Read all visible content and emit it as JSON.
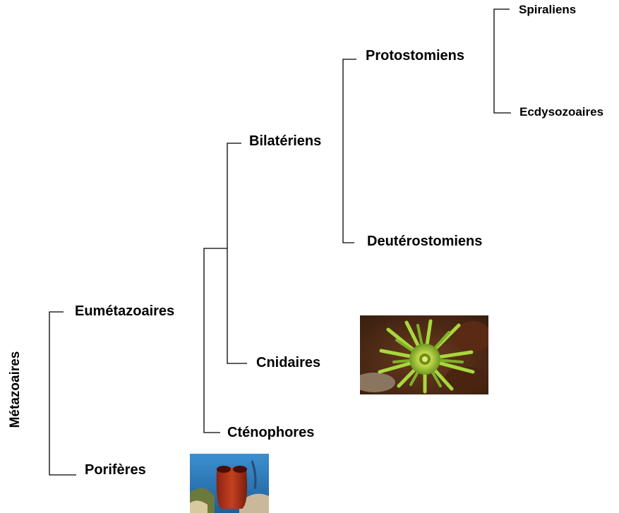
{
  "root": {
    "label": "Métazoaires"
  },
  "taxa": {
    "eumetazoaires": "Eumétazoaires",
    "poriferes": "Porifères",
    "bilateriens": "Bilatériens",
    "cnidaires": "Cnidaires",
    "ctenophores": "Cténophores",
    "protostomiens": "Protostomiens",
    "deuterostomiens": "Deutérostomiens",
    "spiraliens": "Spiraliens",
    "ecdysozoaires": "Ecdysozoaires"
  },
  "images": {
    "sea_anemone": "sea-anemone-photo",
    "sponge": "sponge-photo"
  },
  "colors": {
    "line": "#000000",
    "text": "#000000"
  }
}
